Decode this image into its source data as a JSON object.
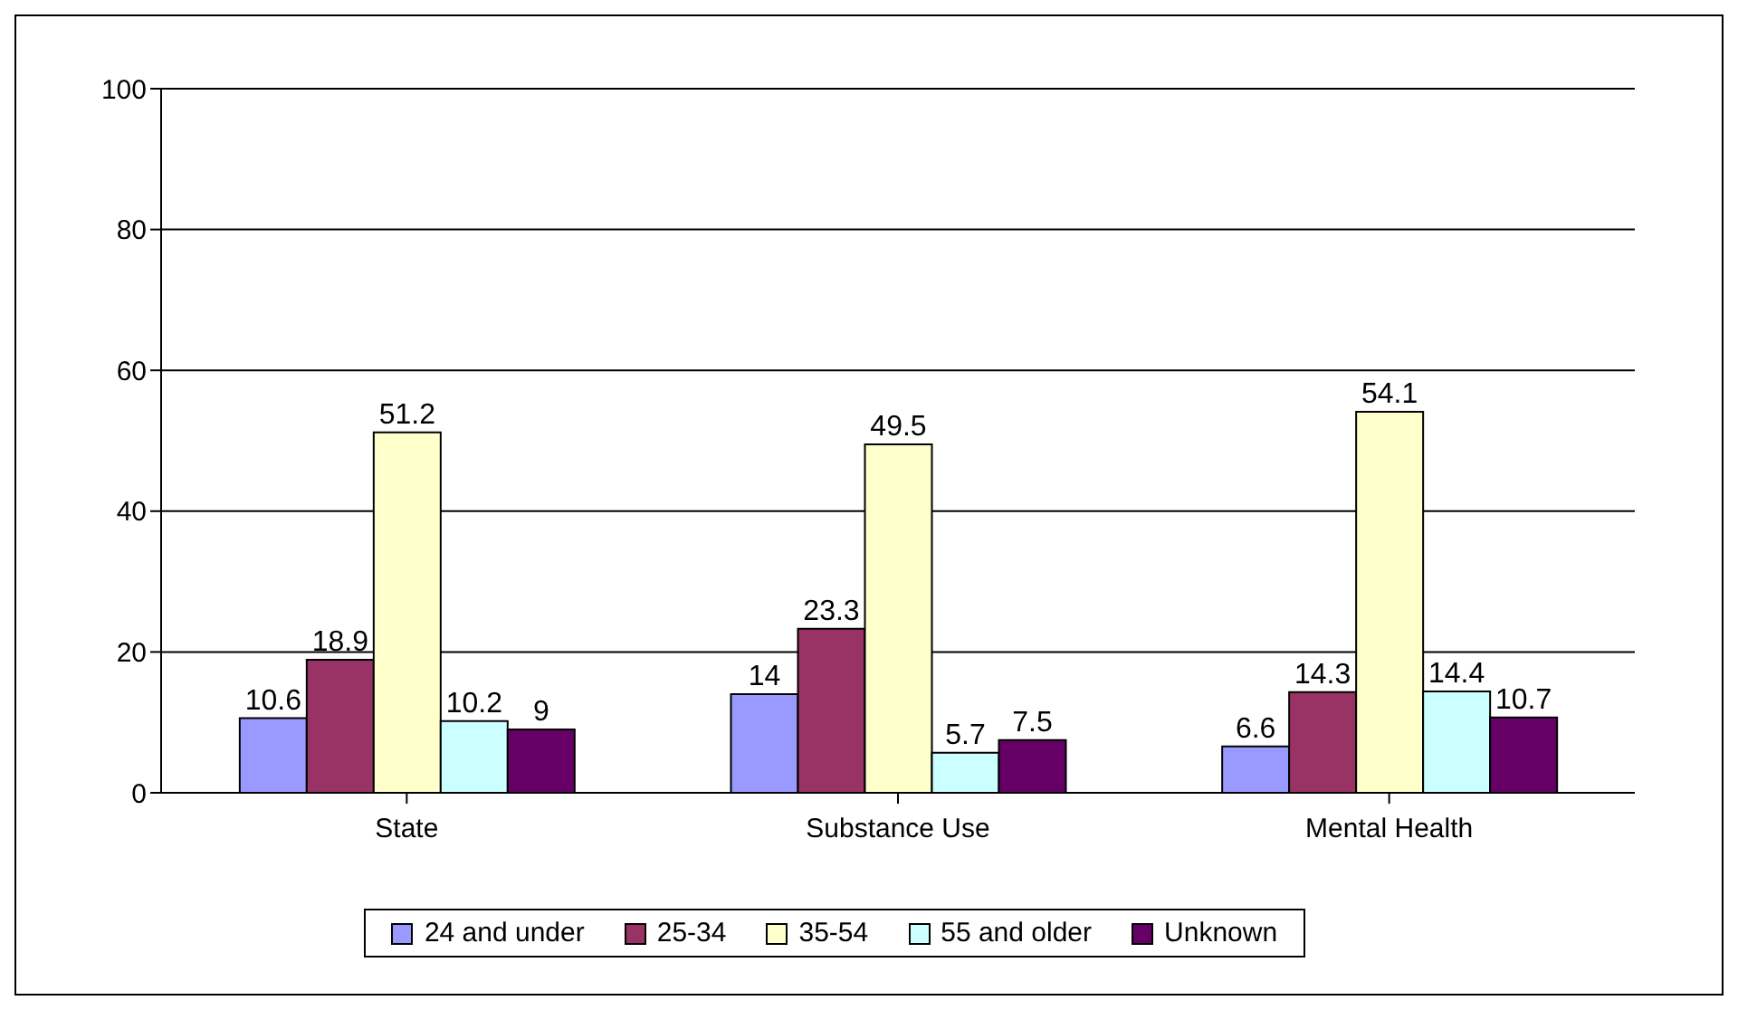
{
  "chart_data": {
    "type": "bar",
    "categories": [
      "State",
      "Substance Use",
      "Mental Health"
    ],
    "series": [
      {
        "name": "24 and under",
        "color": "#9999ff",
        "values": [
          10.6,
          14,
          6.6
        ]
      },
      {
        "name": "25-34",
        "color": "#993366",
        "values": [
          18.9,
          23.3,
          14.3
        ]
      },
      {
        "name": "35-54",
        "color": "#ffffcc",
        "values": [
          51.2,
          49.5,
          54.1
        ]
      },
      {
        "name": "55 and older",
        "color": "#ccffff",
        "values": [
          10.2,
          5.7,
          14.4
        ]
      },
      {
        "name": "Unknown",
        "color": "#660066",
        "values": [
          9,
          7.5,
          10.7
        ]
      }
    ],
    "ylim": [
      0,
      100
    ],
    "yticks": [
      0,
      20,
      40,
      60,
      80,
      100
    ],
    "grid": "y",
    "legend": "bottom",
    "data_labels": true
  }
}
